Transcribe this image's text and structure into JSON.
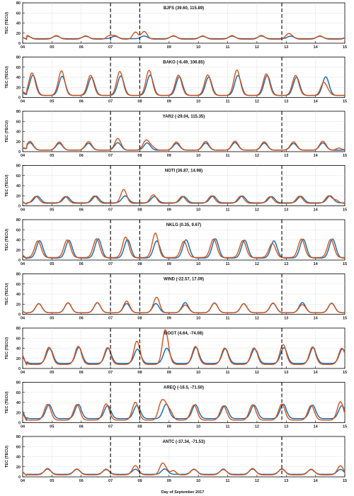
{
  "figure": {
    "xlabel": "Day of September 2017",
    "ylabel": "TEC (TECU)",
    "colors": {
      "model": "#1f6fb5",
      "observed": "#d2531c",
      "event_line": "#000000",
      "axes": "#000000",
      "grid": "#d9d9d9"
    },
    "x_tick_labels": [
      "04",
      "05",
      "06",
      "07",
      "08",
      "09",
      "10",
      "11",
      "12",
      "13",
      "14",
      "15"
    ],
    "y_tick_labels": [
      "0",
      "20",
      "40",
      "60",
      "80"
    ]
  },
  "chart_data": [
    {
      "type": "line",
      "title": "BJFS (39.60, 115.89)",
      "xlim": [
        4,
        15
      ],
      "ylim": [
        0,
        80
      ],
      "event_days": [
        7.0,
        8.0,
        12.85
      ],
      "series": [
        {
          "color": "#1f6fb5",
          "base": 9,
          "amp": 5,
          "peak_phase": 0.15,
          "y_start": 12,
          "anomalies": []
        },
        {
          "color": "#d2531c",
          "base": 8,
          "amp": 7,
          "peak_phase": 0.15,
          "y_start": 12,
          "anomalies": [
            {
              "day": 6.95,
              "boost": 6
            },
            {
              "day": 7.85,
              "boost": 14
            },
            {
              "day": 8.15,
              "boost": 8
            },
            {
              "day": 13.05,
              "boost": 6
            }
          ]
        }
      ]
    },
    {
      "type": "line",
      "title": "BAKO (-6.49, 106.85)",
      "xlim": [
        4,
        15
      ],
      "ylim": [
        0,
        80
      ],
      "event_days": [
        7.0,
        8.0,
        12.85
      ],
      "series": [
        {
          "color": "#1f6fb5",
          "base": 4,
          "amp": 38,
          "peak_phase": 0.35,
          "y_start": 15,
          "anomalies": []
        },
        {
          "color": "#d2531c",
          "base": 4,
          "amp": 42,
          "peak_phase": 0.32,
          "y_start": 20,
          "anomalies": [
            {
              "day": 5.35,
              "boost": 8
            },
            {
              "day": 7.3,
              "boost": 4
            },
            {
              "day": 8.3,
              "boost": 6
            },
            {
              "day": 11.3,
              "boost": 6
            },
            {
              "day": 14.35,
              "boost": -18
            }
          ]
        }
      ]
    },
    {
      "type": "line",
      "title": "YAR2 (-29.04, 115.35)",
      "xlim": [
        4,
        15
      ],
      "ylim": [
        0,
        80
      ],
      "event_days": [
        7.0,
        8.0,
        12.85
      ],
      "series": [
        {
          "color": "#1f6fb5",
          "base": 3,
          "amp": 14,
          "peak_phase": 0.25,
          "y_start": 10,
          "anomalies": []
        },
        {
          "color": "#d2531c",
          "base": 3,
          "amp": 17,
          "peak_phase": 0.25,
          "y_start": 12,
          "anomalies": [
            {
              "day": 7.25,
              "boost": 5
            },
            {
              "day": 8.15,
              "boost": 5
            },
            {
              "day": 8.45,
              "boost": 4
            },
            {
              "day": 14.8,
              "boost": 4
            }
          ]
        }
      ]
    },
    {
      "type": "line",
      "title": "NOTI (36.87, 14.98)",
      "xlim": [
        4,
        15
      ],
      "ylim": [
        0,
        80
      ],
      "event_days": [
        7.0,
        8.0,
        12.85
      ],
      "series": [
        {
          "color": "#1f6fb5",
          "base": 6,
          "amp": 13,
          "peak_phase": 0.5,
          "y_start": 10,
          "anomalies": []
        },
        {
          "color": "#d2531c",
          "base": 5,
          "amp": 14,
          "peak_phase": 0.45,
          "y_start": 10,
          "anomalies": [
            {
              "day": 7.45,
              "boost": 13
            },
            {
              "day": 8.5,
              "boost": 4
            },
            {
              "day": 14.7,
              "boost": 6
            }
          ]
        }
      ]
    },
    {
      "type": "line",
      "title": "NKLG (0.35, 9.67)",
      "xlim": [
        4,
        15
      ],
      "ylim": [
        0,
        80
      ],
      "event_days": [
        7.0,
        8.0,
        12.85
      ],
      "series": [
        {
          "color": "#1f6fb5",
          "base": 4,
          "amp": 36,
          "peak_phase": 0.58,
          "y_start": 12,
          "anomalies": []
        },
        {
          "color": "#d2531c",
          "base": 5,
          "amp": 35,
          "peak_phase": 0.52,
          "y_start": 15,
          "anomalies": [
            {
              "day": 7.5,
              "boost": 6
            },
            {
              "day": 8.55,
              "boost": 16
            },
            {
              "day": 9.6,
              "boost": -6
            },
            {
              "day": 12.5,
              "boost": -6
            }
          ]
        }
      ]
    },
    {
      "type": "line",
      "title": "WIND (-22.57, 17.09)",
      "xlim": [
        4,
        15
      ],
      "ylim": [
        0,
        80
      ],
      "event_days": [
        7.0,
        8.0,
        12.85
      ],
      "series": [
        {
          "color": "#1f6fb5",
          "base": 3,
          "amp": 19,
          "peak_phase": 0.55,
          "y_start": 8,
          "anomalies": []
        },
        {
          "color": "#d2531c",
          "base": 3,
          "amp": 19,
          "peak_phase": 0.55,
          "y_start": 8,
          "anomalies": [
            {
              "day": 7.55,
              "boost": 5
            },
            {
              "day": 8.6,
              "boost": 13
            },
            {
              "day": 9.55,
              "boost": -5
            },
            {
              "day": 13.55,
              "boost": -4
            }
          ]
        }
      ]
    },
    {
      "type": "line",
      "title": "BOGT (4.64, -74.08)",
      "xlim": [
        4,
        15
      ],
      "ylim": [
        0,
        80
      ],
      "event_days": [
        7.0,
        8.0,
        12.85
      ],
      "series": [
        {
          "color": "#1f6fb5",
          "base": 10,
          "amp": 30,
          "peak_phase": 0.92,
          "y_start": 20,
          "anomalies": []
        },
        {
          "color": "#d2531c",
          "base": 8,
          "amp": 34,
          "peak_phase": 0.9,
          "y_start": 24,
          "anomalies": [
            {
              "day": 7.9,
              "boost": 14
            },
            {
              "day": 8.85,
              "boost": 36
            },
            {
              "day": 12.85,
              "boost": 4
            }
          ]
        }
      ]
    },
    {
      "type": "line",
      "title": "AREQ (-16.5, -71.50)",
      "xlim": [
        4,
        15
      ],
      "ylim": [
        0,
        80
      ],
      "event_days": [
        7.0,
        8.0,
        12.85
      ],
      "series": [
        {
          "color": "#1f6fb5",
          "base": 8,
          "amp": 27,
          "peak_phase": 0.9,
          "y_start": 20,
          "anomalies": []
        },
        {
          "color": "#d2531c",
          "base": 5,
          "amp": 30,
          "peak_phase": 0.85,
          "y_start": 22,
          "anomalies": [
            {
              "day": 6.85,
              "boost": 4
            },
            {
              "day": 7.85,
              "boost": 6
            },
            {
              "day": 8.7,
              "boost": 22
            },
            {
              "day": 9.05,
              "boost": 14
            },
            {
              "day": 14.85,
              "boost": 8
            }
          ]
        }
      ]
    },
    {
      "type": "line",
      "title": "ANTC (-37.34, -71.53)",
      "xlim": [
        4,
        15
      ],
      "ylim": [
        0,
        80
      ],
      "event_days": [
        7.0,
        8.0,
        12.85
      ],
      "series": [
        {
          "color": "#1f6fb5",
          "base": 5,
          "amp": 10,
          "peak_phase": 0.85,
          "y_start": 10,
          "anomalies": []
        },
        {
          "color": "#d2531c",
          "base": 4,
          "amp": 12,
          "peak_phase": 0.85,
          "y_start": 12,
          "anomalies": [
            {
              "day": 7.85,
              "boost": 6
            },
            {
              "day": 8.75,
              "boost": 14
            },
            {
              "day": 9.15,
              "boost": 8
            },
            {
              "day": 14.85,
              "boost": 6
            }
          ]
        }
      ]
    }
  ]
}
